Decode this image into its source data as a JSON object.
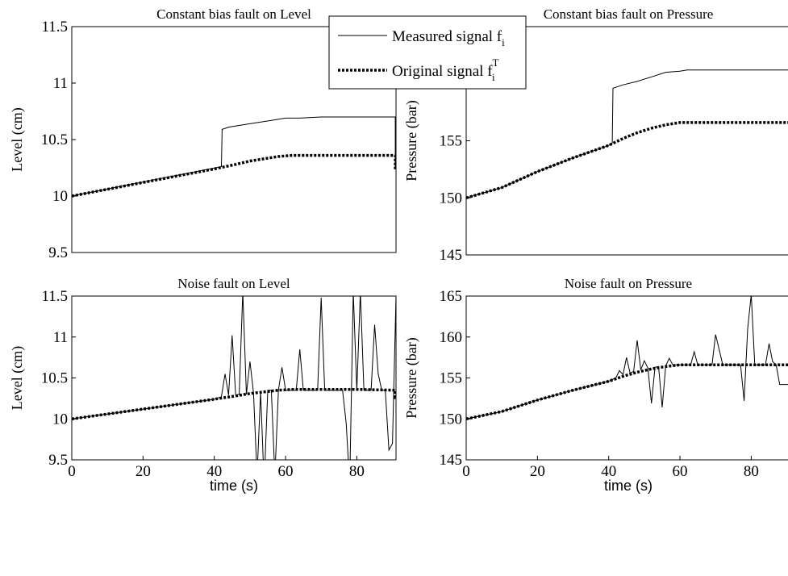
{
  "legend": {
    "entries": [
      {
        "label": "Measured signal f",
        "sub": "i",
        "sup": "",
        "style": "solid"
      },
      {
        "label": "Original signal f",
        "sub": "i",
        "sup": "T",
        "style": "dotted"
      }
    ],
    "placement": "top-center"
  },
  "colors": {
    "line": "#000000",
    "background": "#ffffff"
  },
  "chart_data": [
    {
      "type": "line",
      "title": "Constant bias fault on Level",
      "xlabel": "",
      "ylabel": "Level (cm)",
      "xlim": [
        0,
        91
      ],
      "ylim": [
        9.5,
        11.5
      ],
      "yticks": [
        9.5,
        10,
        10.5,
        11,
        11.5
      ],
      "ytick_labels": [
        "9.5",
        "10",
        "10.5",
        "11",
        "11.5"
      ],
      "xticks": [],
      "xtick_labels": [],
      "grid": false,
      "series": [
        {
          "name": "Measured signal",
          "style": "solid",
          "x": [
            0,
            42,
            42.2,
            44,
            48,
            52,
            56,
            60,
            64,
            70,
            80,
            90.8,
            90.8,
            91
          ],
          "y": [
            10.0,
            10.26,
            10.59,
            10.61,
            10.63,
            10.65,
            10.67,
            10.69,
            10.69,
            10.7,
            10.7,
            10.7,
            10.25,
            10.25
          ]
        },
        {
          "name": "Original signal",
          "style": "dotted",
          "x": [
            0,
            10,
            20,
            30,
            40,
            46,
            50,
            54,
            58,
            62,
            70,
            80,
            90.8,
            90.8,
            91
          ],
          "y": [
            10.0,
            10.06,
            10.12,
            10.18,
            10.24,
            10.28,
            10.31,
            10.33,
            10.35,
            10.36,
            10.36,
            10.36,
            10.36,
            10.25,
            10.25
          ]
        }
      ]
    },
    {
      "type": "line",
      "title": "Constant bias fault on Pressure",
      "xlabel": "",
      "ylabel": "Pressure (bar)",
      "xlim": [
        0,
        91
      ],
      "ylim": [
        145,
        165
      ],
      "yticks": [
        145,
        150,
        155
      ],
      "ytick_labels": [
        "145",
        "150",
        "155"
      ],
      "xticks": [],
      "xtick_labels": [],
      "grid": false,
      "series": [
        {
          "name": "Measured signal",
          "style": "solid",
          "x": [
            0,
            10,
            20,
            30,
            40,
            41,
            41.2,
            44,
            48,
            52,
            56,
            60,
            62,
            70,
            80,
            91
          ],
          "y": [
            150,
            150.9,
            152.3,
            153.5,
            154.6,
            154.8,
            159.6,
            159.9,
            160.2,
            160.6,
            161.0,
            161.1,
            161.2,
            161.2,
            161.2,
            161.2
          ]
        },
        {
          "name": "Original signal",
          "style": "dotted",
          "x": [
            0,
            10,
            20,
            30,
            40,
            44,
            48,
            52,
            56,
            60,
            62,
            70,
            80,
            91
          ],
          "y": [
            150,
            150.9,
            152.3,
            153.5,
            154.6,
            155.2,
            155.7,
            156.1,
            156.4,
            156.6,
            156.6,
            156.6,
            156.6,
            156.6
          ]
        }
      ]
    },
    {
      "type": "line",
      "title": "Noise fault on Level",
      "xlabel": "time (s)",
      "ylabel": "Level (cm)",
      "xlim": [
        0,
        91
      ],
      "ylim": [
        9.5,
        11.5
      ],
      "yticks": [
        9.5,
        10,
        10.5,
        11,
        11.5
      ],
      "ytick_labels": [
        "9.5",
        "10",
        "10.5",
        "11",
        "11.5"
      ],
      "xticks": [
        0,
        20,
        40,
        60,
        80
      ],
      "xtick_labels": [
        "0",
        "20",
        "40",
        "60",
        "80"
      ],
      "grid": false,
      "series": [
        {
          "name": "Measured signal",
          "style": "solid",
          "x": [
            0,
            10,
            20,
            30,
            40,
            42,
            43,
            44,
            45,
            46,
            47,
            48,
            49,
            50,
            51,
            52,
            53,
            54,
            55,
            56,
            57,
            58,
            59,
            60,
            61,
            62,
            63,
            64,
            65,
            66,
            67,
            68,
            69,
            70,
            71,
            72,
            73,
            74,
            75,
            76,
            77,
            78,
            79,
            80,
            81,
            82,
            83,
            84,
            85,
            86,
            87,
            88,
            89,
            90,
            91
          ],
          "y": [
            10.0,
            10.06,
            10.12,
            10.18,
            10.24,
            10.27,
            10.55,
            10.29,
            11.02,
            10.29,
            10.3,
            11.55,
            10.3,
            10.7,
            10.32,
            9.3,
            10.33,
            9.2,
            10.35,
            10.35,
            9.3,
            10.35,
            10.63,
            10.35,
            10.35,
            10.35,
            10.35,
            10.85,
            10.35,
            10.35,
            10.35,
            10.35,
            10.35,
            11.48,
            10.35,
            10.35,
            10.35,
            10.35,
            10.35,
            10.35,
            9.95,
            9.2,
            11.55,
            10.35,
            11.55,
            10.35,
            10.35,
            10.35,
            11.15,
            10.55,
            10.35,
            10.35,
            9.62,
            9.7,
            11.5
          ]
        },
        {
          "name": "Original signal",
          "style": "dotted",
          "x": [
            0,
            10,
            20,
            30,
            40,
            46,
            50,
            54,
            58,
            62,
            70,
            80,
            90.8,
            90.8,
            91
          ],
          "y": [
            10.0,
            10.06,
            10.12,
            10.18,
            10.24,
            10.28,
            10.31,
            10.33,
            10.35,
            10.36,
            10.36,
            10.36,
            10.35,
            10.26,
            10.26
          ]
        }
      ]
    },
    {
      "type": "line",
      "title": "Noise fault on Pressure",
      "xlabel": "time (s)",
      "ylabel": "Pressure (bar)",
      "xlim": [
        0,
        91
      ],
      "ylim": [
        145,
        165
      ],
      "yticks": [
        145,
        150,
        155,
        160,
        165
      ],
      "ytick_labels": [
        "145",
        "150",
        "155",
        "160",
        "165"
      ],
      "xticks": [
        0,
        20,
        40,
        60,
        80
      ],
      "xtick_labels": [
        "0",
        "20",
        "40",
        "60",
        "80"
      ],
      "grid": false,
      "series": [
        {
          "name": "Measured signal",
          "style": "solid",
          "x": [
            0,
            10,
            20,
            30,
            40,
            42,
            43,
            44,
            45,
            46,
            47,
            48,
            49,
            50,
            51,
            52,
            53,
            54,
            55,
            56,
            57,
            58,
            59,
            60,
            61,
            62,
            63,
            64,
            65,
            66,
            67,
            68,
            69,
            70,
            71,
            72,
            73,
            74,
            75,
            76,
            77,
            78,
            79,
            80,
            81,
            82,
            83,
            84,
            85,
            86,
            87,
            88,
            89,
            90,
            91
          ],
          "y": [
            150,
            150.9,
            152.3,
            153.5,
            154.6,
            155.0,
            155.9,
            155.4,
            157.5,
            155.6,
            155.8,
            159.6,
            156.0,
            157.1,
            156.2,
            151.9,
            156.3,
            156.4,
            151.4,
            156.5,
            157.4,
            156.6,
            156.6,
            156.6,
            156.6,
            156.6,
            156.6,
            158.2,
            156.6,
            156.6,
            156.6,
            156.6,
            156.6,
            160.3,
            158.5,
            156.6,
            156.6,
            156.6,
            156.6,
            156.6,
            156.6,
            152.2,
            161.0,
            165.2,
            156.6,
            156.6,
            156.6,
            156.6,
            159.2,
            157.0,
            156.6,
            154.2,
            154.2,
            154.2,
            154.2
          ]
        },
        {
          "name": "Original signal",
          "style": "dotted",
          "x": [
            0,
            10,
            20,
            30,
            40,
            44,
            48,
            52,
            56,
            60,
            62,
            70,
            80,
            91
          ],
          "y": [
            150,
            150.9,
            152.3,
            153.5,
            154.6,
            155.2,
            155.7,
            156.1,
            156.4,
            156.6,
            156.6,
            156.6,
            156.6,
            156.6
          ]
        }
      ]
    }
  ]
}
